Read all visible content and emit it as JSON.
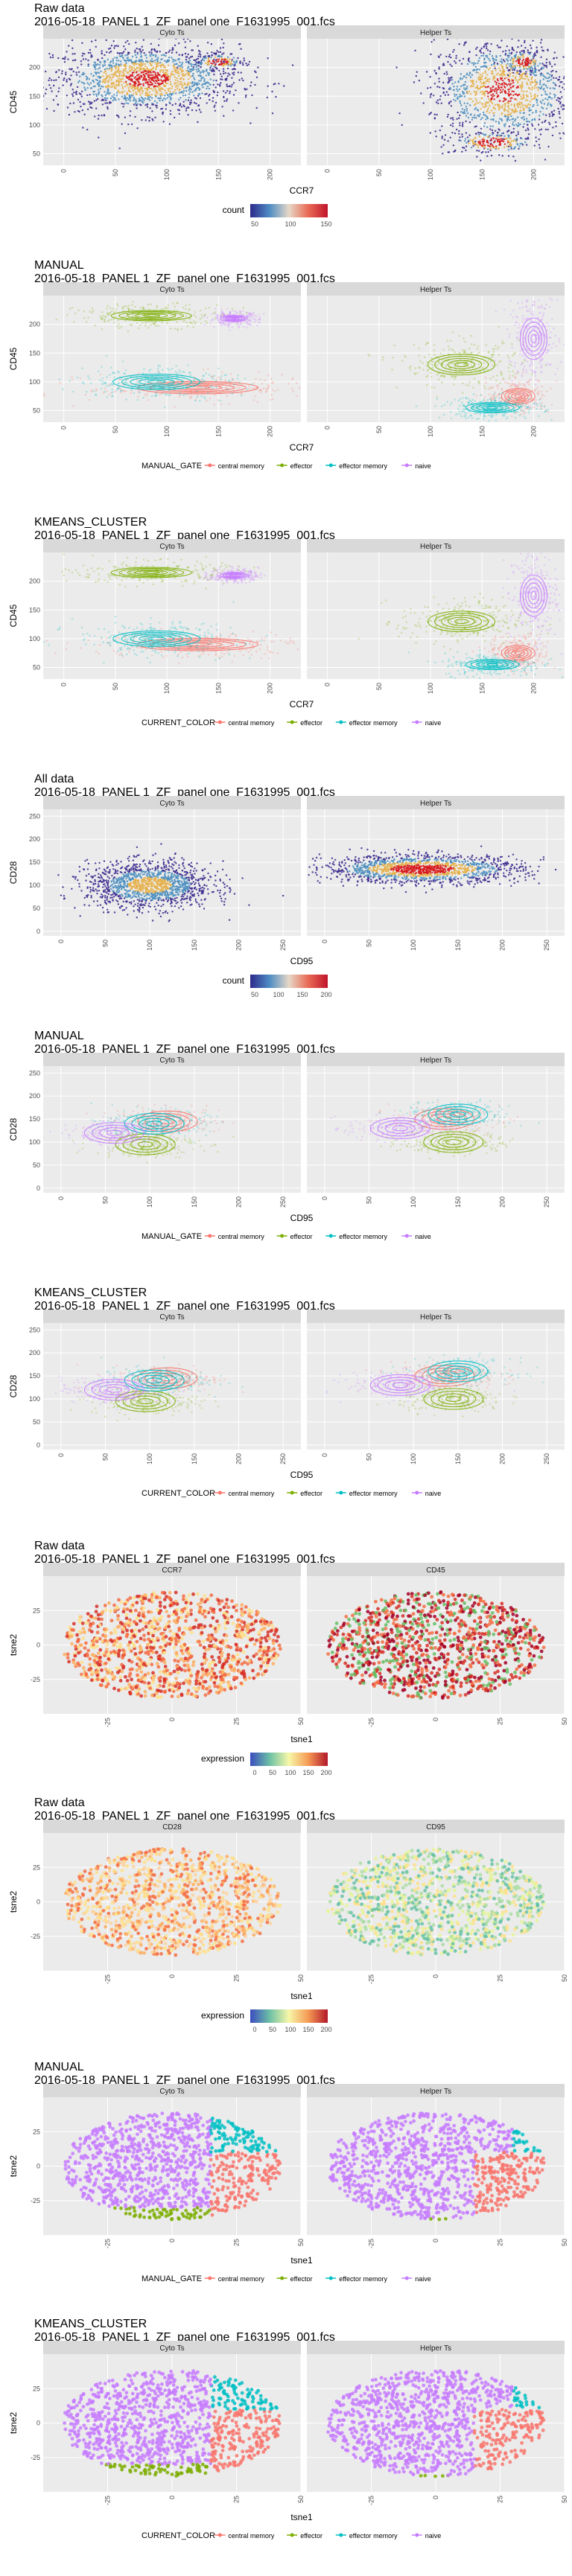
{
  "palette": {
    "panel_bg": "#ebebeb",
    "strip_bg": "#d9d9d9",
    "grid": "#ffffff",
    "central_memory": "#f8766d",
    "effector": "#7cae00",
    "effector_memory": "#00bfc4",
    "naive": "#c77cff",
    "density_low": "#3d2c8f",
    "density_mid": "#4b8fbf",
    "density_high": "#d7191c"
  },
  "chart_data": [
    {
      "type": "scatter",
      "title": "Raw data",
      "subtitle": "2016-05-18_PANEL 1_ZF_panel one_F1631995_001.fcs",
      "facets": [
        "Cyto Ts",
        "Helper Ts"
      ],
      "xlabel": "CCR7",
      "ylabel": "CD45",
      "xlim": [
        -20,
        230
      ],
      "ylim": [
        30,
        250
      ],
      "xticks": [
        0,
        50,
        100,
        150,
        200
      ],
      "yticks": [
        50,
        100,
        150,
        200
      ],
      "legend": {
        "title": "count",
        "ticks": [
          "50",
          "100",
          "150"
        ]
      }
    },
    {
      "type": "scatter",
      "title": "MANUAL",
      "subtitle": "2016-05-18_PANEL 1_ZF_panel one_F1631995_001.fcs",
      "facets": [
        "Cyto Ts",
        "Helper Ts"
      ],
      "xlabel": "CCR7",
      "ylabel": "CD45",
      "xlim": [
        -20,
        230
      ],
      "ylim": [
        30,
        250
      ],
      "xticks": [
        0,
        50,
        100,
        150,
        200
      ],
      "yticks": [
        50,
        100,
        150,
        200
      ],
      "legend": {
        "title": "MANUAL_GATE",
        "items": [
          "central memory",
          "effector",
          "effector memory",
          "naive"
        ]
      }
    },
    {
      "type": "scatter",
      "title": "KMEANS_CLUSTER",
      "subtitle": "2016-05-18_PANEL 1_ZF_panel one_F1631995_001.fcs",
      "facets": [
        "Cyto Ts",
        "Helper Ts"
      ],
      "xlabel": "CCR7",
      "ylabel": "CD45",
      "xlim": [
        -20,
        230
      ],
      "ylim": [
        30,
        250
      ],
      "xticks": [
        0,
        50,
        100,
        150,
        200
      ],
      "yticks": [
        50,
        100,
        150,
        200
      ],
      "legend": {
        "title": "CURRENT_COLOR",
        "items": [
          "central memory",
          "effector",
          "effector memory",
          "naive"
        ]
      }
    },
    {
      "type": "scatter",
      "title": "All data",
      "subtitle": "2016-05-18_PANEL 1_ZF_panel one_F1631995_001.fcs",
      "facets": [
        "Cyto Ts",
        "Helper Ts"
      ],
      "xlabel": "CD95",
      "ylabel": "CD28",
      "xlim": [
        -20,
        270
      ],
      "ylim": [
        -10,
        265
      ],
      "xticks": [
        0,
        50,
        100,
        150,
        200,
        250
      ],
      "yticks": [
        0,
        50,
        100,
        150,
        200,
        250
      ],
      "legend": {
        "title": "count",
        "ticks": [
          "50",
          "100",
          "150",
          "200"
        ]
      }
    },
    {
      "type": "scatter",
      "title": "MANUAL",
      "subtitle": "2016-05-18_PANEL 1_ZF_panel one_F1631995_001.fcs",
      "facets": [
        "Cyto Ts",
        "Helper Ts"
      ],
      "xlabel": "CD95",
      "ylabel": "CD28",
      "xlim": [
        -20,
        270
      ],
      "ylim": [
        -10,
        265
      ],
      "xticks": [
        0,
        50,
        100,
        150,
        200,
        250
      ],
      "yticks": [
        0,
        50,
        100,
        150,
        200,
        250
      ],
      "legend": {
        "title": "MANUAL_GATE",
        "items": [
          "central memory",
          "effector",
          "effector memory",
          "naive"
        ]
      }
    },
    {
      "type": "scatter",
      "title": "KMEANS_CLUSTER",
      "subtitle": "2016-05-18_PANEL 1_ZF_panel one_F1631995_001.fcs",
      "facets": [
        "Cyto Ts",
        "Helper Ts"
      ],
      "xlabel": "CD95",
      "ylabel": "CD28",
      "xlim": [
        -20,
        270
      ],
      "ylim": [
        -10,
        265
      ],
      "xticks": [
        0,
        50,
        100,
        150,
        200,
        250
      ],
      "yticks": [
        0,
        50,
        100,
        150,
        200,
        250
      ],
      "legend": {
        "title": "CURRENT_COLOR",
        "items": [
          "central memory",
          "effector",
          "effector memory",
          "naive"
        ]
      }
    },
    {
      "type": "scatter",
      "title": "Raw data",
      "subtitle": "2016-05-18_PANEL 1_ZF_panel one_F1631995_001.fcs",
      "facets": [
        "CCR7",
        "CD45"
      ],
      "xlabel": "tsne1",
      "ylabel": "tsne2",
      "xlim": [
        -50,
        50
      ],
      "ylim": [
        -50,
        50
      ],
      "xticks": [
        -25,
        0,
        25,
        50
      ],
      "yticks": [
        -25,
        0,
        25
      ],
      "legend": {
        "title": "expression",
        "ticks": [
          "0",
          "50",
          "100",
          "150",
          "200"
        ]
      }
    },
    {
      "type": "scatter",
      "title": "Raw data",
      "subtitle": "2016-05-18_PANEL 1_ZF_panel one_F1631995_001.fcs",
      "facets": [
        "CD28",
        "CD95"
      ],
      "xlabel": "tsne1",
      "ylabel": "tsne2",
      "xlim": [
        -50,
        50
      ],
      "ylim": [
        -50,
        50
      ],
      "xticks": [
        -25,
        0,
        25,
        50
      ],
      "yticks": [
        -25,
        0,
        25
      ],
      "legend": {
        "title": "expression",
        "ticks": [
          "0",
          "50",
          "100",
          "150",
          "200"
        ]
      }
    },
    {
      "type": "scatter",
      "title": "MANUAL",
      "subtitle": "2016-05-18_PANEL 1_ZF_panel one_F1631995_001.fcs",
      "facets": [
        "Cyto Ts",
        "Helper Ts"
      ],
      "xlabel": "tsne1",
      "ylabel": "tsne2",
      "xlim": [
        -50,
        50
      ],
      "ylim": [
        -50,
        50
      ],
      "xticks": [
        -25,
        0,
        25,
        50
      ],
      "yticks": [
        -25,
        0,
        25
      ],
      "legend": {
        "title": "MANUAL_GATE",
        "items": [
          "central memory",
          "effector",
          "effector memory",
          "naive"
        ]
      }
    },
    {
      "type": "scatter",
      "title": "KMEANS_CLUSTER",
      "subtitle": "2016-05-18_PANEL 1_ZF_panel one_F1631995_001.fcs",
      "facets": [
        "Cyto Ts",
        "Helper Ts"
      ],
      "xlabel": "tsne1",
      "ylabel": "tsne2",
      "xlim": [
        -50,
        50
      ],
      "ylim": [
        -50,
        50
      ],
      "xticks": [
        -25,
        0,
        25,
        50
      ],
      "yticks": [
        -25,
        0,
        25
      ],
      "legend": {
        "title": "CURRENT_COLOR",
        "items": [
          "central memory",
          "effector",
          "effector memory",
          "naive"
        ]
      }
    }
  ]
}
